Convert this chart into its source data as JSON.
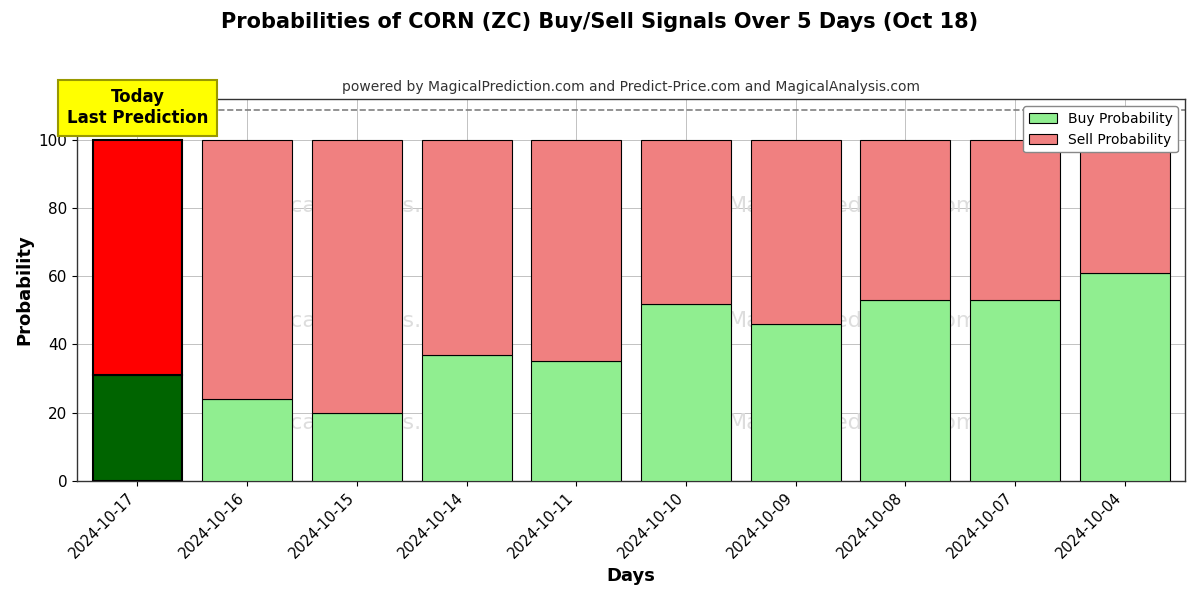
{
  "title": "Probabilities of CORN (ZC) Buy/Sell Signals Over 5 Days (Oct 18)",
  "subtitle": "powered by MagicalPrediction.com and Predict-Price.com and MagicalAnalysis.com",
  "xlabel": "Days",
  "ylabel": "Probability",
  "dates": [
    "2024-10-17",
    "2024-10-16",
    "2024-10-15",
    "2024-10-14",
    "2024-10-11",
    "2024-10-10",
    "2024-10-09",
    "2024-10-08",
    "2024-10-07",
    "2024-10-04"
  ],
  "buy_values": [
    31,
    24,
    20,
    37,
    35,
    52,
    46,
    53,
    53,
    61
  ],
  "sell_values": [
    69,
    76,
    80,
    63,
    65,
    48,
    54,
    47,
    47,
    39
  ],
  "today_buy_color": "#006400",
  "today_sell_color": "#ff0000",
  "buy_color": "#90ee90",
  "sell_color": "#f08080",
  "bar_edge_color": "#000000",
  "today_annotation": "Today\nLast Prediction",
  "today_annotation_bg": "#ffff00",
  "legend_buy_label": "Buy Probability",
  "legend_sell_label": "Sell Probability",
  "ylim": [
    0,
    112
  ],
  "yticks": [
    0,
    20,
    40,
    60,
    80,
    100
  ],
  "dashed_line_y": 109,
  "grid_color": "#aaaaaa",
  "background_color": "#ffffff",
  "watermark_color": "#dddddd"
}
